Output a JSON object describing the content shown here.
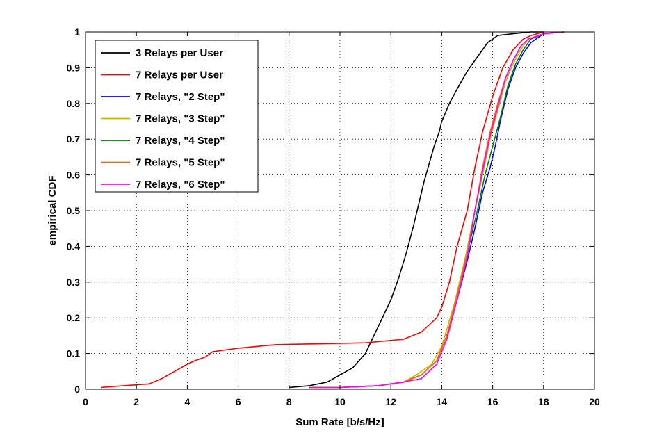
{
  "chart_data": {
    "type": "line",
    "title": "",
    "xlabel": "Sum Rate [b/s/Hz]",
    "ylabel": "empirical CDF",
    "xlim": [
      0,
      20
    ],
    "ylim": [
      0,
      1
    ],
    "xticks": [
      0,
      2,
      4,
      6,
      8,
      10,
      12,
      14,
      16,
      18,
      20
    ],
    "yticks": [
      0,
      0.1,
      0.2,
      0.3,
      0.4,
      0.5,
      0.6,
      0.7,
      0.8,
      0.9,
      1
    ],
    "xtick_labels": [
      "0",
      "2",
      "4",
      "6",
      "8",
      "10",
      "12",
      "14",
      "16",
      "18",
      "20"
    ],
    "ytick_labels": [
      "0",
      "0.1",
      "0.2",
      "0.3",
      "0.4",
      "0.5",
      "0.6",
      "0.7",
      "0.8",
      "0.9",
      "1"
    ],
    "grid": true,
    "legend_position": "top-left",
    "series": [
      {
        "name": "3 Relays per User",
        "color": "#000000",
        "x": [
          8.0,
          8.8,
          9.5,
          10.0,
          10.5,
          11.0,
          11.2,
          11.4,
          11.6,
          12.0,
          12.3,
          12.6,
          12.9,
          13.1,
          13.3,
          13.5,
          13.7,
          13.9,
          14.0,
          14.3,
          14.6,
          15.0,
          15.4,
          15.8,
          16.2,
          16.8,
          17.5,
          18.0
        ],
        "y": [
          0.005,
          0.01,
          0.02,
          0.04,
          0.06,
          0.1,
          0.13,
          0.16,
          0.19,
          0.25,
          0.31,
          0.38,
          0.46,
          0.52,
          0.58,
          0.63,
          0.68,
          0.72,
          0.75,
          0.8,
          0.84,
          0.89,
          0.93,
          0.97,
          0.99,
          0.995,
          1.0,
          1.0
        ]
      },
      {
        "name": "7 Relays per User",
        "color": "#ff0000",
        "x": [
          0.6,
          1.5,
          2.5,
          3.0,
          3.5,
          4.0,
          4.3,
          4.7,
          5.0,
          6.0,
          7.5,
          9.0,
          11.0,
          12.5,
          13.2,
          13.8,
          14.0,
          14.3,
          14.6,
          15.0,
          15.3,
          15.6,
          16.0,
          16.4,
          16.8,
          17.2,
          17.5,
          18.0
        ],
        "y": [
          0.005,
          0.01,
          0.015,
          0.03,
          0.05,
          0.07,
          0.08,
          0.09,
          0.105,
          0.115,
          0.125,
          0.127,
          0.13,
          0.14,
          0.16,
          0.2,
          0.23,
          0.3,
          0.4,
          0.5,
          0.62,
          0.72,
          0.82,
          0.9,
          0.95,
          0.98,
          0.99,
          1.0
        ]
      },
      {
        "name": "7 Relays, \"2 Step\"",
        "color": "#0000ff",
        "x": [
          8.8,
          10.0,
          11.5,
          12.5,
          13.2,
          13.8,
          14.2,
          14.6,
          15.0,
          15.3,
          15.6,
          15.9,
          16.1,
          16.3,
          16.6,
          16.9,
          17.2,
          17.5,
          18.0,
          18.8
        ],
        "y": [
          0.005,
          0.005,
          0.01,
          0.02,
          0.04,
          0.08,
          0.15,
          0.25,
          0.36,
          0.45,
          0.55,
          0.62,
          0.68,
          0.75,
          0.84,
          0.9,
          0.94,
          0.97,
          0.995,
          1.0
        ]
      },
      {
        "name": "7 Relays, \"3 Step\"",
        "color": "#c8b400",
        "x": [
          8.8,
          10.0,
          11.5,
          12.5,
          13.0,
          13.6,
          14.0,
          14.5,
          14.9,
          15.3,
          15.6,
          15.9,
          16.2,
          16.5,
          16.8,
          17.1,
          17.4,
          18.0,
          18.8
        ],
        "y": [
          0.005,
          0.005,
          0.01,
          0.02,
          0.04,
          0.07,
          0.12,
          0.24,
          0.36,
          0.5,
          0.6,
          0.7,
          0.78,
          0.86,
          0.91,
          0.95,
          0.98,
          0.995,
          1.0
        ]
      },
      {
        "name": "7 Relays, \"4 Step\"",
        "color": "#007f00",
        "x": [
          8.8,
          10.0,
          11.5,
          12.5,
          13.2,
          13.8,
          14.2,
          14.6,
          15.0,
          15.4,
          15.7,
          16.0,
          16.3,
          16.6,
          16.9,
          17.2,
          17.5,
          18.0,
          18.8
        ],
        "y": [
          0.005,
          0.005,
          0.01,
          0.02,
          0.04,
          0.08,
          0.15,
          0.26,
          0.38,
          0.5,
          0.6,
          0.68,
          0.76,
          0.85,
          0.91,
          0.95,
          0.98,
          0.995,
          1.0
        ]
      },
      {
        "name": "7 Relays, \"5 Step\"",
        "color": "#ff6a00",
        "x": [
          8.8,
          10.0,
          11.5,
          12.5,
          13.2,
          13.8,
          14.2,
          14.6,
          15.0,
          15.3,
          15.6,
          15.9,
          16.2,
          16.5,
          16.8,
          17.1,
          17.4,
          18.0,
          18.8
        ],
        "y": [
          0.005,
          0.005,
          0.01,
          0.02,
          0.04,
          0.08,
          0.15,
          0.26,
          0.38,
          0.5,
          0.62,
          0.72,
          0.8,
          0.87,
          0.92,
          0.96,
          0.98,
          0.995,
          1.0
        ]
      },
      {
        "name": "7 Relays, \"6 Step\"",
        "color": "#ff00ff",
        "x": [
          8.8,
          10.0,
          11.5,
          12.5,
          13.2,
          13.8,
          14.2,
          14.6,
          15.0,
          15.3,
          15.6,
          15.9,
          16.2,
          16.5,
          16.8,
          17.1,
          17.4,
          18.0,
          18.8
        ],
        "y": [
          0.005,
          0.005,
          0.01,
          0.02,
          0.03,
          0.07,
          0.14,
          0.25,
          0.37,
          0.5,
          0.61,
          0.71,
          0.79,
          0.87,
          0.92,
          0.96,
          0.98,
          0.995,
          1.0
        ]
      }
    ]
  }
}
